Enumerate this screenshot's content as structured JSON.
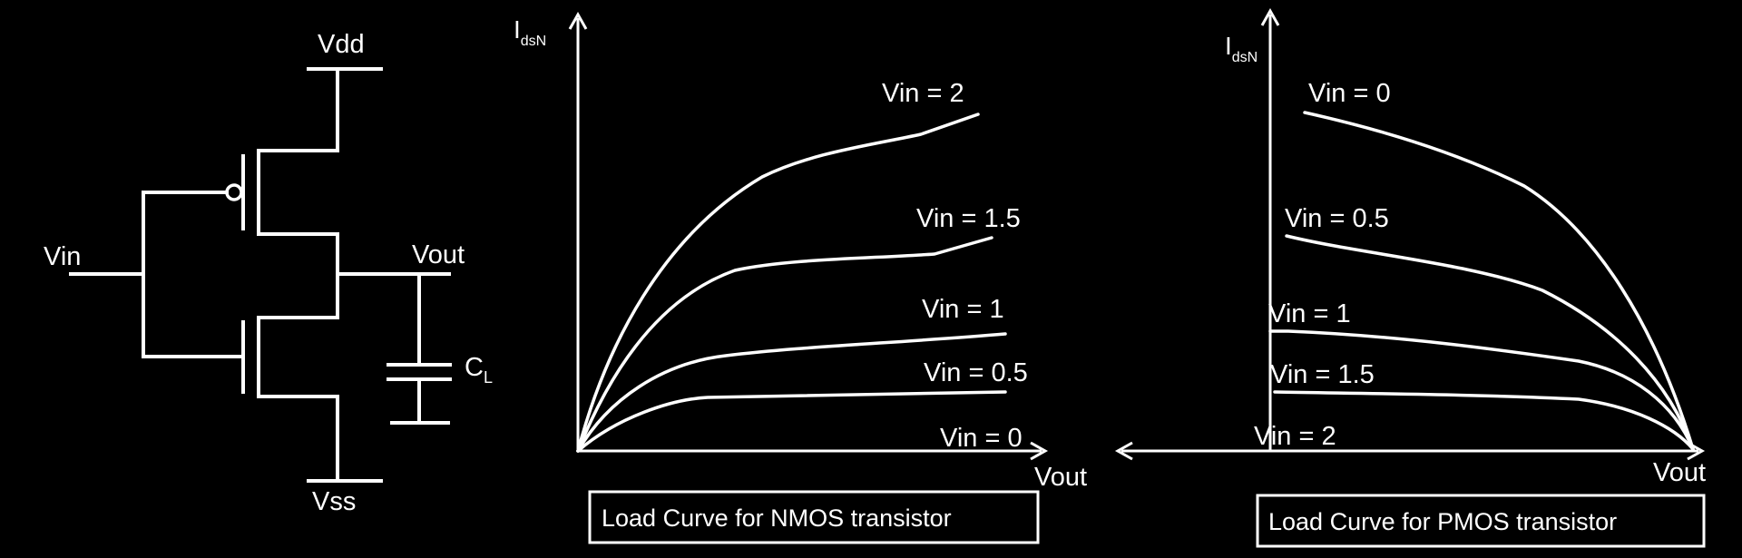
{
  "circuit": {
    "vdd": "Vdd",
    "vss": "Vss",
    "vin": "Vin",
    "vout": "Vout",
    "cap_main": "C",
    "cap_sub": "L"
  },
  "nmos": {
    "y_label_main": "I",
    "y_label_sub": "dsN",
    "x_label": "Vout",
    "caption": "Load Curve for NMOS transistor",
    "curve_labels": [
      "Vin = 2",
      "Vin = 1.5",
      "Vin = 1",
      "Vin = 0.5",
      "Vin = 0"
    ]
  },
  "pmos": {
    "y_label_main": "I",
    "y_label_sub": "dsN",
    "x_label": "Vout",
    "caption": "Load Curve for PMOS transistor",
    "curve_labels": [
      "Vin = 0",
      "Vin = 0.5",
      "Vin = 1",
      "Vin = 1.5",
      "Vin = 2"
    ]
  },
  "colors": {
    "background": "#000000",
    "foreground": "#ffffff"
  }
}
